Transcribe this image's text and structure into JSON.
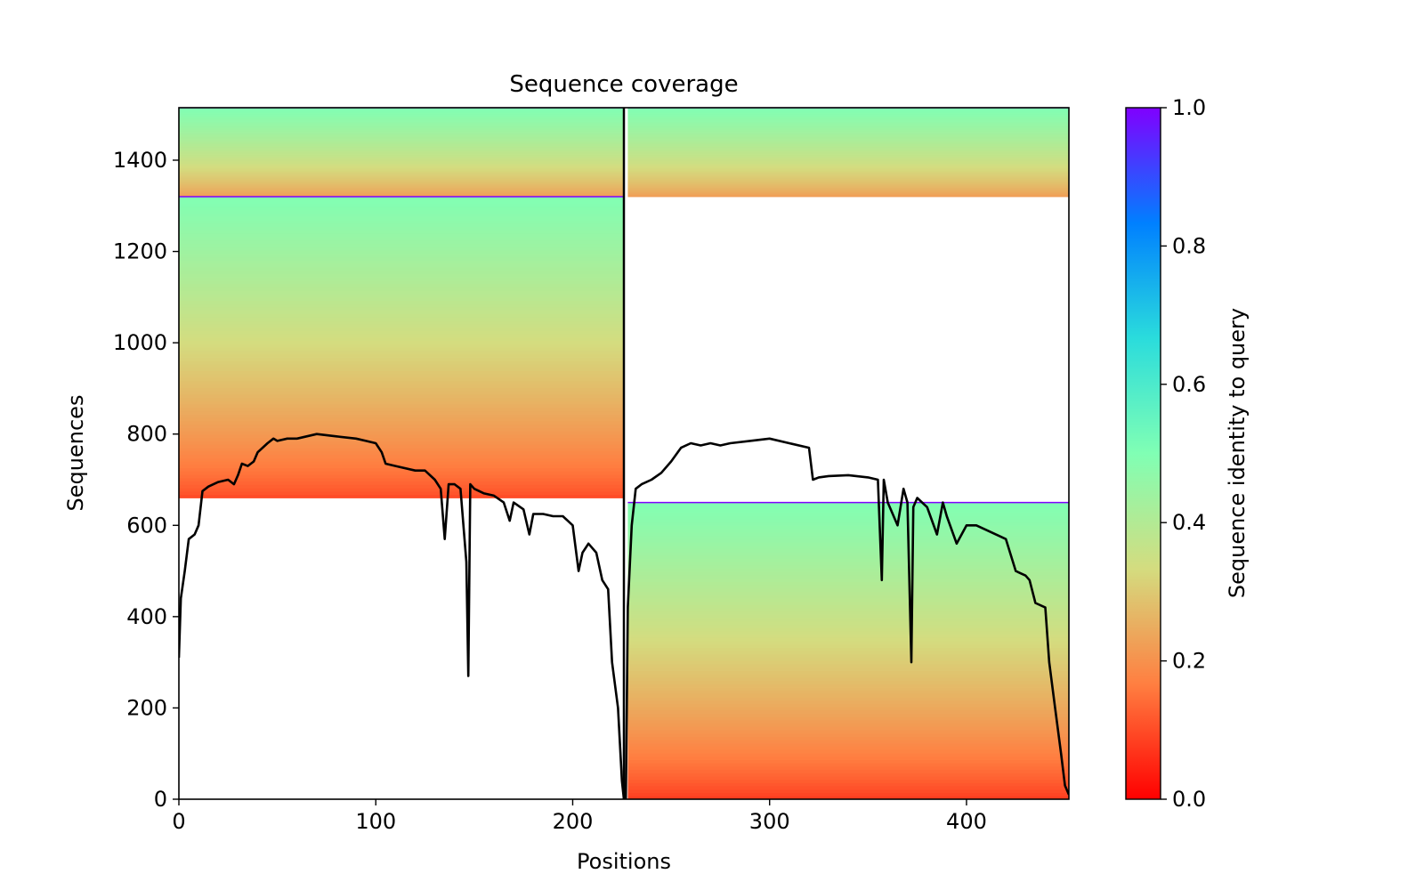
{
  "chart_data": {
    "type": "heatmap",
    "title": "Sequence coverage",
    "xlabel": "Positions",
    "ylabel": "Sequences",
    "xlim": [
      0,
      452
    ],
    "ylim": [
      0,
      1515
    ],
    "x_ticks": [
      0,
      100,
      200,
      300,
      400
    ],
    "y_ticks": [
      0,
      200,
      400,
      600,
      800,
      1000,
      1200,
      1400
    ],
    "chain_boundary": 226,
    "colorbar": {
      "label": "Sequence identity to query",
      "range": [
        0,
        1
      ],
      "ticks": [
        "0.0",
        "0.2",
        "0.4",
        "0.6",
        "0.8",
        "1.0"
      ],
      "colormap": "rainbow_r",
      "colors": [
        "#ff0000",
        "#ff7f41",
        "#d4dc7f",
        "#80ffb4",
        "#2adcdc",
        "#0080ff",
        "#8000ff"
      ]
    },
    "blocks": [
      {
        "name": "chain1-top",
        "x": [
          0,
          226
        ],
        "y": [
          1320,
          1515
        ],
        "identity_top": 0.5,
        "identity_bottom": 0.22
      },
      {
        "name": "chain1-main",
        "x": [
          0,
          226
        ],
        "y": [
          660,
          1320
        ],
        "identity_top": 0.5,
        "identity_bottom": 0.1
      },
      {
        "name": "chain2-top",
        "x": [
          228,
          452
        ],
        "y": [
          1320,
          1515
        ],
        "identity_top": 0.5,
        "identity_bottom": 0.22
      },
      {
        "name": "chain2-main",
        "x": [
          228,
          452
        ],
        "y": [
          0,
          650
        ],
        "identity_top": 0.5,
        "identity_bottom": 0.08
      }
    ],
    "coverage_line": {
      "x": [
        0,
        1,
        3,
        5,
        8,
        10,
        12,
        15,
        20,
        25,
        28,
        30,
        32,
        35,
        38,
        40,
        45,
        48,
        50,
        55,
        60,
        70,
        80,
        90,
        95,
        100,
        103,
        105,
        110,
        120,
        125,
        130,
        133,
        135,
        137,
        140,
        143,
        146,
        147,
        148,
        150,
        155,
        160,
        165,
        168,
        170,
        175,
        178,
        180,
        185,
        190,
        195,
        200,
        203,
        205,
        208,
        212,
        215,
        218,
        220,
        223,
        225,
        226,
        227,
        228,
        230,
        232,
        235,
        240,
        245,
        250,
        255,
        260,
        265,
        270,
        275,
        280,
        290,
        300,
        310,
        320,
        322,
        325,
        330,
        340,
        350,
        355,
        357,
        358,
        360,
        365,
        368,
        370,
        372,
        373,
        375,
        380,
        385,
        388,
        390,
        395,
        400,
        405,
        410,
        420,
        425,
        430,
        432,
        435,
        440,
        442,
        445,
        448,
        450,
        452
      ],
      "y": [
        310,
        440,
        500,
        570,
        580,
        600,
        675,
        685,
        695,
        700,
        690,
        710,
        735,
        730,
        740,
        760,
        780,
        790,
        785,
        790,
        790,
        800,
        795,
        790,
        785,
        780,
        760,
        735,
        730,
        720,
        720,
        700,
        680,
        570,
        690,
        690,
        680,
        520,
        270,
        690,
        680,
        670,
        665,
        650,
        610,
        650,
        635,
        580,
        625,
        625,
        620,
        620,
        600,
        500,
        540,
        560,
        540,
        480,
        460,
        300,
        200,
        40,
        0,
        0,
        420,
        600,
        680,
        690,
        700,
        715,
        740,
        770,
        780,
        775,
        780,
        775,
        780,
        785,
        790,
        780,
        770,
        700,
        705,
        708,
        710,
        705,
        700,
        480,
        700,
        650,
        600,
        680,
        650,
        300,
        640,
        660,
        640,
        580,
        650,
        620,
        560,
        600,
        600,
        590,
        570,
        500,
        490,
        480,
        430,
        420,
        300,
        200,
        100,
        30,
        10
      ]
    }
  }
}
